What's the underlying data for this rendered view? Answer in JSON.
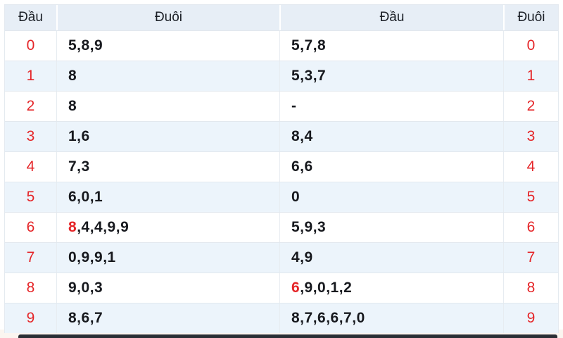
{
  "colors": {
    "header_bg": "#e7eef6",
    "row_alt_bg": "#ecf4fb",
    "row_bg": "#ffffff",
    "accent_red": "#e52528",
    "text_dark": "#17191e",
    "border": "#e2e8ee",
    "bottom_bar": "#2a2e35"
  },
  "table": {
    "headers": [
      "Đầu",
      "Đuôi",
      "Đầu",
      "Đuôi"
    ],
    "rows": [
      {
        "dau": "0",
        "left": [
          {
            "text": "5,8,9",
            "red": false
          }
        ],
        "right": [
          {
            "text": "5,7,8",
            "red": false
          }
        ],
        "duoi": "0"
      },
      {
        "dau": "1",
        "left": [
          {
            "text": "8",
            "red": false
          }
        ],
        "right": [
          {
            "text": "5,3,7",
            "red": false
          }
        ],
        "duoi": "1"
      },
      {
        "dau": "2",
        "left": [
          {
            "text": "8",
            "red": false
          }
        ],
        "right": [
          {
            "text": "-",
            "red": false
          }
        ],
        "duoi": "2"
      },
      {
        "dau": "3",
        "left": [
          {
            "text": "1,6",
            "red": false
          }
        ],
        "right": [
          {
            "text": "8,4",
            "red": false
          }
        ],
        "duoi": "3"
      },
      {
        "dau": "4",
        "left": [
          {
            "text": "7,3",
            "red": false
          }
        ],
        "right": [
          {
            "text": "6,6",
            "red": false
          }
        ],
        "duoi": "4"
      },
      {
        "dau": "5",
        "left": [
          {
            "text": "6,0,1",
            "red": false
          }
        ],
        "right": [
          {
            "text": "0",
            "red": false
          }
        ],
        "duoi": "5"
      },
      {
        "dau": "6",
        "left": [
          {
            "text": "8",
            "red": true
          },
          {
            "text": ",4,4,9,9",
            "red": false
          }
        ],
        "right": [
          {
            "text": "5,9,3",
            "red": false
          }
        ],
        "duoi": "6"
      },
      {
        "dau": "7",
        "left": [
          {
            "text": "0,9,9,1",
            "red": false
          }
        ],
        "right": [
          {
            "text": "4,9",
            "red": false
          }
        ],
        "duoi": "7"
      },
      {
        "dau": "8",
        "left": [
          {
            "text": "9,0,3",
            "red": false
          }
        ],
        "right": [
          {
            "text": "6",
            "red": true
          },
          {
            "text": ",9,0,1,2",
            "red": false
          }
        ],
        "duoi": "8"
      },
      {
        "dau": "9",
        "left": [
          {
            "text": "8,6,7",
            "red": false
          }
        ],
        "right": [
          {
            "text": "8,7,6,6,7,0",
            "red": false
          }
        ],
        "duoi": "9"
      }
    ]
  }
}
